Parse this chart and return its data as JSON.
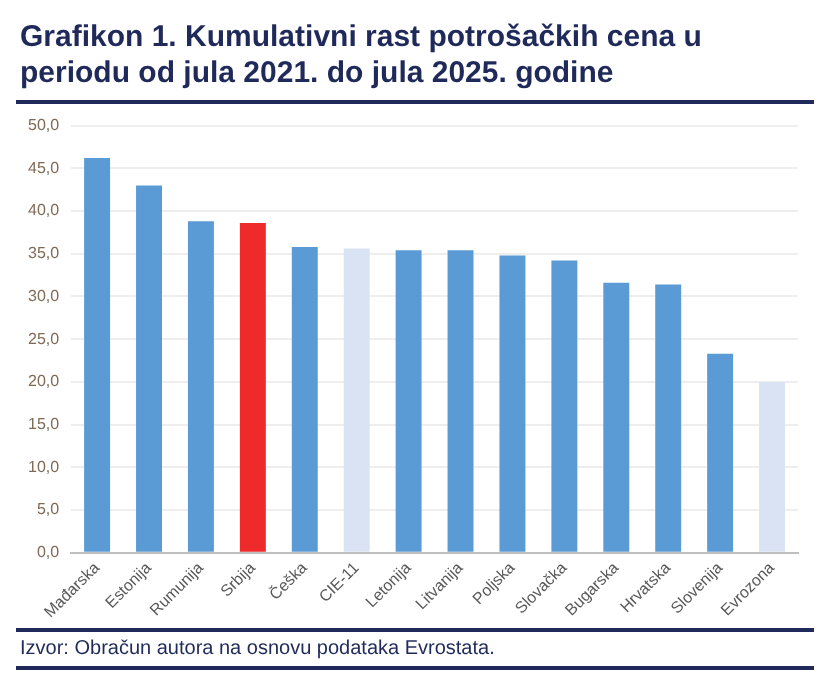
{
  "chart_data": {
    "type": "bar",
    "title": "Grafikon 1. Kumulativni rast potrošačkih cena u periodu od jula 2021. do jula 2025. godine",
    "categories": [
      "Mađarska",
      "Estonija",
      "Rumunija",
      "Srbija",
      "Češka",
      "CIE-11",
      "Letonija",
      "Litvanija",
      "Poljska",
      "Slovačka",
      "Bugarska",
      "Hrvatska",
      "Slovenija",
      "Evrozona"
    ],
    "values": [
      46.2,
      43.0,
      38.8,
      38.6,
      35.8,
      35.6,
      35.4,
      35.4,
      34.8,
      34.2,
      31.6,
      31.4,
      23.3,
      20.0
    ],
    "colors": [
      "#5b9bd5",
      "#5b9bd5",
      "#5b9bd5",
      "#ee2a2a",
      "#5b9bd5",
      "#dae3f3",
      "#5b9bd5",
      "#5b9bd5",
      "#5b9bd5",
      "#5b9bd5",
      "#5b9bd5",
      "#5b9bd5",
      "#5b9bd5",
      "#dae3f3"
    ],
    "ylim": [
      0,
      50
    ],
    "yticks": [
      {
        "value": 0,
        "label": "0,0"
      },
      {
        "value": 5,
        "label": "5,0"
      },
      {
        "value": 10,
        "label": "10,0"
      },
      {
        "value": 15,
        "label": "15,0"
      },
      {
        "value": 20,
        "label": "20,0"
      },
      {
        "value": 25,
        "label": "25,0"
      },
      {
        "value": 30,
        "label": "30,0"
      },
      {
        "value": 35,
        "label": "35,0"
      },
      {
        "value": 40,
        "label": "40,0"
      },
      {
        "value": 45,
        "label": "45,0"
      },
      {
        "value": 50,
        "label": "50,0"
      }
    ],
    "grid": "y",
    "annotations": [
      "Izvor: Obračun autora na osnovu podataka Evrostata."
    ]
  }
}
